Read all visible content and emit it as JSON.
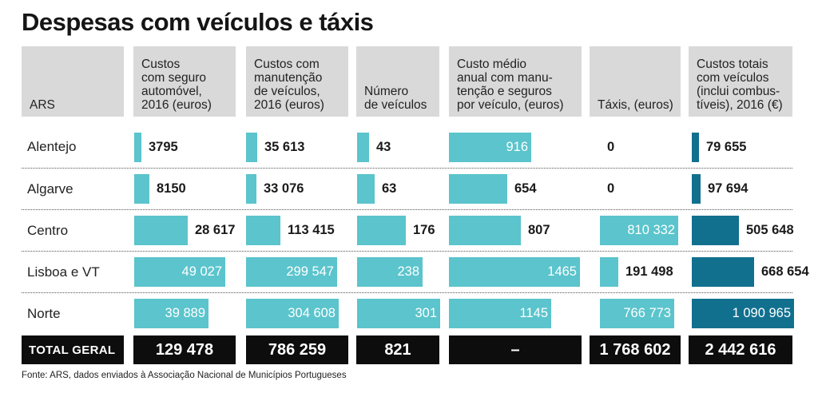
{
  "title": "Despesas com veículos e táxis",
  "source": "Fonte: ARS, dados enviados à Associação Nacional de Municípios Portugueses",
  "colors": {
    "bar_light": "#5bc4cc",
    "bar_dark": "#12708f",
    "header_bg": "#d9d9d9",
    "total_bg": "#0d0d0d"
  },
  "headers": {
    "ars": "ARS",
    "seguro": "Custos\ncom seguro\nautomóvel,\n2016 (euros)",
    "manutencao": "Custos com\nmanutenção\nde veículos,\n2016 (euros)",
    "numero": "Número\nde veículos",
    "custo_medio": "Custo médio\nanual com manu-\ntenção e seguros\npor veículo, (euros)",
    "taxis": "Táxis, (euros)",
    "totais": "Custos totais\ncom veículos\n(inclui combus-\ntíveis), 2016 (€)"
  },
  "total_label": "TOTAL GERAL",
  "chart_data": {
    "type": "table",
    "rows": [
      "Alentejo",
      "Algarve",
      "Centro",
      "Lisboa e VT",
      "Norte"
    ],
    "columns": [
      {
        "key": "seguro",
        "values": [
          3795,
          8150,
          28617,
          49027,
          39889
        ],
        "labels": [
          "3795",
          "8150",
          "28 617",
          "49 027",
          "39 889"
        ],
        "total": "129 478"
      },
      {
        "key": "manutencao",
        "values": [
          35613,
          33076,
          113415,
          299547,
          304608
        ],
        "labels": [
          "35 613",
          "33 076",
          "113 415",
          "299 547",
          "304 608"
        ],
        "total": "786 259"
      },
      {
        "key": "numero",
        "values": [
          43,
          63,
          176,
          238,
          301
        ],
        "labels": [
          "43",
          "63",
          "176",
          "238",
          "301"
        ],
        "total": "821"
      },
      {
        "key": "custo_medio",
        "values": [
          916,
          654,
          807,
          1465,
          1145
        ],
        "labels": [
          "916",
          "654",
          "807",
          "1465",
          "1145"
        ],
        "total": "–"
      },
      {
        "key": "taxis",
        "values": [
          0,
          0,
          810332,
          191498,
          766773
        ],
        "labels": [
          "0",
          "0",
          "810 332",
          "191 498",
          "766 773"
        ],
        "total": "1 768 602"
      },
      {
        "key": "totais",
        "values": [
          79655,
          97694,
          505648,
          668654,
          1090965
        ],
        "labels": [
          "79 655",
          "97 694",
          "505 648",
          "668 654",
          "1 090 965"
        ],
        "total": "2 442 616"
      }
    ]
  }
}
